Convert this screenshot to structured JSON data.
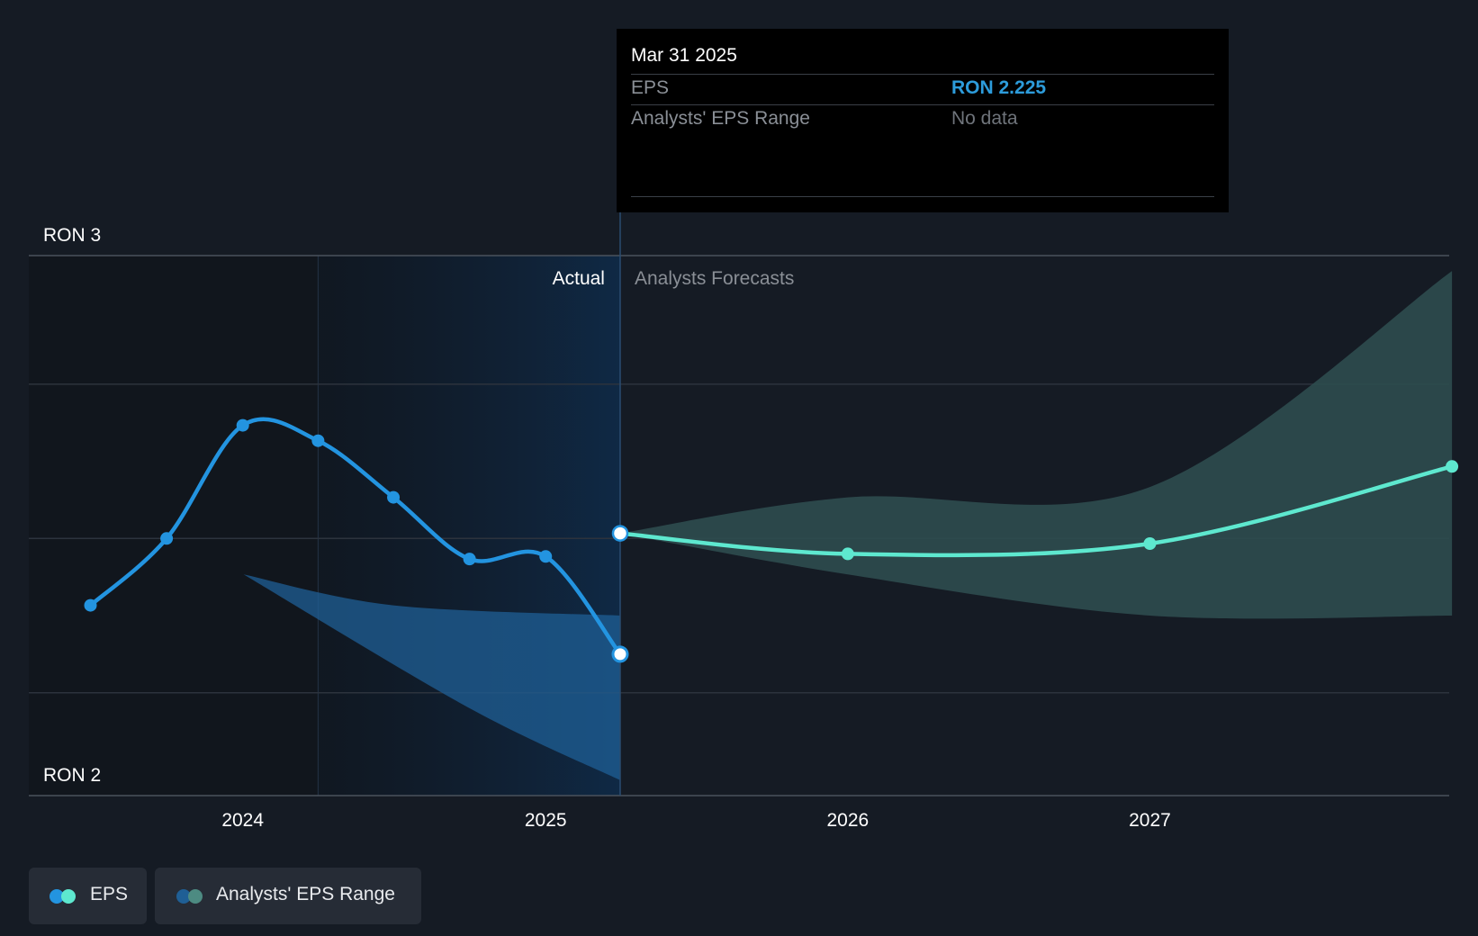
{
  "tooltip": {
    "date": "Mar 31 2025",
    "rows": [
      {
        "label": "EPS",
        "value": "RON 2.225",
        "color": "#2d9cdb"
      },
      {
        "label": "Analysts' EPS Range",
        "value": "No data",
        "color": "#6f747b"
      }
    ]
  },
  "legend": {
    "eps": "EPS",
    "range": "Analysts' EPS Range"
  },
  "colors": {
    "actual": "#2394e0",
    "forecast": "#5ee8cf",
    "actual_band": "#1f5f95",
    "forecast_band": "#2d4d4f",
    "background": "#151b24"
  },
  "chart_data": {
    "type": "line",
    "ylim": [
      1.95,
      3.0
    ],
    "y_ticks": [
      {
        "value": 3.0,
        "label": "RON 3"
      },
      {
        "value": 2.0,
        "label": "RON 2"
      }
    ],
    "y_gridlines": [
      2.15,
      2.45,
      2.75,
      3.0
    ],
    "x_ticks": [
      "2024",
      "2025",
      "2026",
      "2027"
    ],
    "section_labels": {
      "actual": "Actual",
      "forecast": "Analysts Forecasts"
    },
    "series": [
      {
        "name": "EPS",
        "points": [
          {
            "x": "2023-06-30",
            "y": 2.32
          },
          {
            "x": "2023-09-30",
            "y": 2.45
          },
          {
            "x": "2023-12-31",
            "y": 2.67
          },
          {
            "x": "2024-03-31",
            "y": 2.64
          },
          {
            "x": "2024-06-30",
            "y": 2.53
          },
          {
            "x": "2024-09-30",
            "y": 2.41
          },
          {
            "x": "2024-12-31",
            "y": 2.415
          },
          {
            "x": "2025-03-31",
            "y": 2.225
          }
        ]
      },
      {
        "name": "EPS forecast",
        "points": [
          {
            "x": "2025-03-31",
            "y": 2.46
          },
          {
            "x": "2025-12-31",
            "y": 2.42
          },
          {
            "x": "2026-12-31",
            "y": 2.44
          },
          {
            "x": "2027-12-31",
            "y": 2.59
          }
        ]
      }
    ],
    "range_bands": [
      {
        "name": "Analysts' EPS Range (actual period)",
        "upper": [
          {
            "x": "2024-01-01",
            "y": 2.38
          },
          {
            "x": "2024-06-30",
            "y": 2.32
          },
          {
            "x": "2025-03-31",
            "y": 2.3
          }
        ],
        "lower": [
          {
            "x": "2024-01-01",
            "y": 2.38
          },
          {
            "x": "2024-09-30",
            "y": 2.12
          },
          {
            "x": "2025-03-31",
            "y": 1.98
          }
        ]
      },
      {
        "name": "Analysts' EPS Range (forecast)",
        "upper": [
          {
            "x": "2025-03-31",
            "y": 2.46
          },
          {
            "x": "2025-12-31",
            "y": 2.53
          },
          {
            "x": "2026-12-31",
            "y": 2.55
          },
          {
            "x": "2027-12-31",
            "y": 2.97
          }
        ],
        "lower": [
          {
            "x": "2025-03-31",
            "y": 2.46
          },
          {
            "x": "2025-12-31",
            "y": 2.38
          },
          {
            "x": "2026-12-31",
            "y": 2.3
          },
          {
            "x": "2027-12-31",
            "y": 2.3
          }
        ]
      }
    ],
    "highlight": {
      "x": "2025-03-31"
    },
    "past_shade_start": "2024-03-31",
    "grid": true,
    "legend_position": "bottom-left"
  }
}
